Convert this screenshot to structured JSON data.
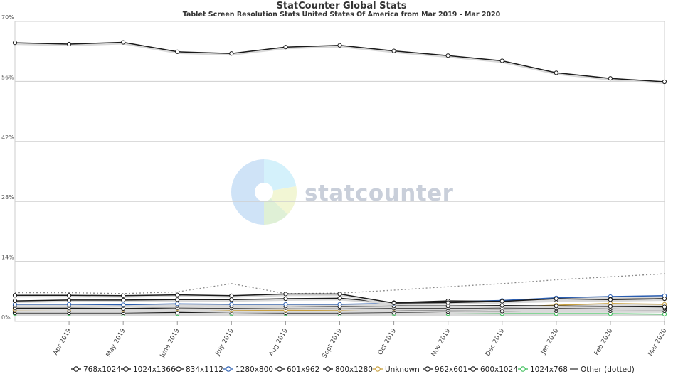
{
  "header": {
    "title": "StatCounter Global Stats",
    "subtitle": "Tablet Screen Resolution Stats United States Of America from Mar 2019 - Mar 2020"
  },
  "watermark": {
    "text": "statcounter"
  },
  "chart_data": {
    "type": "line",
    "title": "StatCounter Global Stats",
    "subtitle": "Tablet Screen Resolution Stats United States Of America from Mar 2019 - Mar 2020",
    "x": [
      "Mar 2019",
      "Apr 2019",
      "May 2019",
      "June 2019",
      "July 2019",
      "Aug 2019",
      "Sept 2019",
      "Oct 2019",
      "Nov 2019",
      "Dec 2019",
      "Jan 2020",
      "Feb 2020",
      "Mar 2020"
    ],
    "x_tick_labels": [
      "Apr 2019",
      "May 2019",
      "June 2019",
      "July 2019",
      "Aug 2019",
      "Sept 2019",
      "Oct 2019",
      "Nov 2019",
      "Dec 2019",
      "Jan 2020",
      "Feb 2020",
      "Mar 2020"
    ],
    "y_tick_labels": [
      "0%",
      "14%",
      "28%",
      "42%",
      "56%",
      "70%"
    ],
    "ylim": [
      0,
      70
    ],
    "grid": true,
    "legend_position": "bottom",
    "series": [
      {
        "name": "768x1024",
        "color": "#1a1a1a",
        "dotted": false,
        "values": [
          65.0,
          64.7,
          65.1,
          62.9,
          62.5,
          64.0,
          64.4,
          63.1,
          62.0,
          60.8,
          58.0,
          56.7,
          55.9
        ]
      },
      {
        "name": "1024x1366",
        "color": "#1a1a1a",
        "dotted": false,
        "values": [
          6.1,
          6.1,
          6.0,
          6.2,
          6.0,
          6.4,
          6.4,
          4.3,
          4.4,
          4.7,
          5.3,
          5.1,
          5.3
        ]
      },
      {
        "name": "834x1112",
        "color": "#1a1a1a",
        "dotted": false,
        "values": [
          4.8,
          5.0,
          5.0,
          5.1,
          5.1,
          5.3,
          5.4,
          4.4,
          4.8,
          4.7,
          5.0,
          5.2,
          5.3
        ]
      },
      {
        "name": "1280x800",
        "color": "#2a5db0",
        "dotted": false,
        "values": [
          4.0,
          4.0,
          3.9,
          4.1,
          4.0,
          4.0,
          4.0,
          4.2,
          4.6,
          4.9,
          5.5,
          5.8,
          6.0
        ]
      },
      {
        "name": "601x962",
        "color": "#1a1a1a",
        "dotted": false,
        "values": [
          3.7,
          3.7,
          3.7,
          3.7,
          3.6,
          3.6,
          3.5,
          3.6,
          3.6,
          3.7,
          3.6,
          3.5,
          3.4
        ]
      },
      {
        "name": "800x1280",
        "color": "#1a1a1a",
        "dotted": false,
        "values": [
          3.1,
          3.1,
          3.0,
          3.2,
          3.1,
          3.2,
          3.1,
          3.1,
          3.1,
          3.2,
          3.1,
          3.0,
          3.1
        ]
      },
      {
        "name": "Unknown",
        "color": "#c8a040",
        "dotted": false,
        "values": [
          2.7,
          2.8,
          2.7,
          3.0,
          2.6,
          2.6,
          2.6,
          3.0,
          3.2,
          3.3,
          3.8,
          4.2,
          4.0
        ]
      },
      {
        "name": "962x601",
        "color": "#1a1a1a",
        "dotted": false,
        "values": [
          2.5,
          2.5,
          2.5,
          2.7,
          2.5,
          2.5,
          2.5,
          2.6,
          2.7,
          2.8,
          2.9,
          3.0,
          3.0
        ]
      },
      {
        "name": "600x1024",
        "color": "#1a1a1a",
        "dotted": false,
        "values": [
          2.0,
          2.0,
          2.0,
          2.1,
          2.1,
          2.0,
          2.0,
          2.1,
          2.3,
          2.4,
          2.5,
          2.5,
          2.5
        ]
      },
      {
        "name": "1024x768",
        "color": "#3dbf5a",
        "dotted": false,
        "values": [
          1.8,
          1.8,
          1.7,
          1.8,
          1.8,
          1.8,
          1.7,
          1.8,
          1.8,
          1.8,
          1.8,
          1.8,
          1.7
        ]
      },
      {
        "name": "Other (dotted)",
        "color": "#888888",
        "dotted": true,
        "values": [
          6.7,
          6.7,
          6.5,
          6.9,
          8.8,
          6.5,
          6.6,
          7.3,
          8.1,
          8.8,
          9.7,
          10.4,
          11.1
        ]
      }
    ]
  }
}
